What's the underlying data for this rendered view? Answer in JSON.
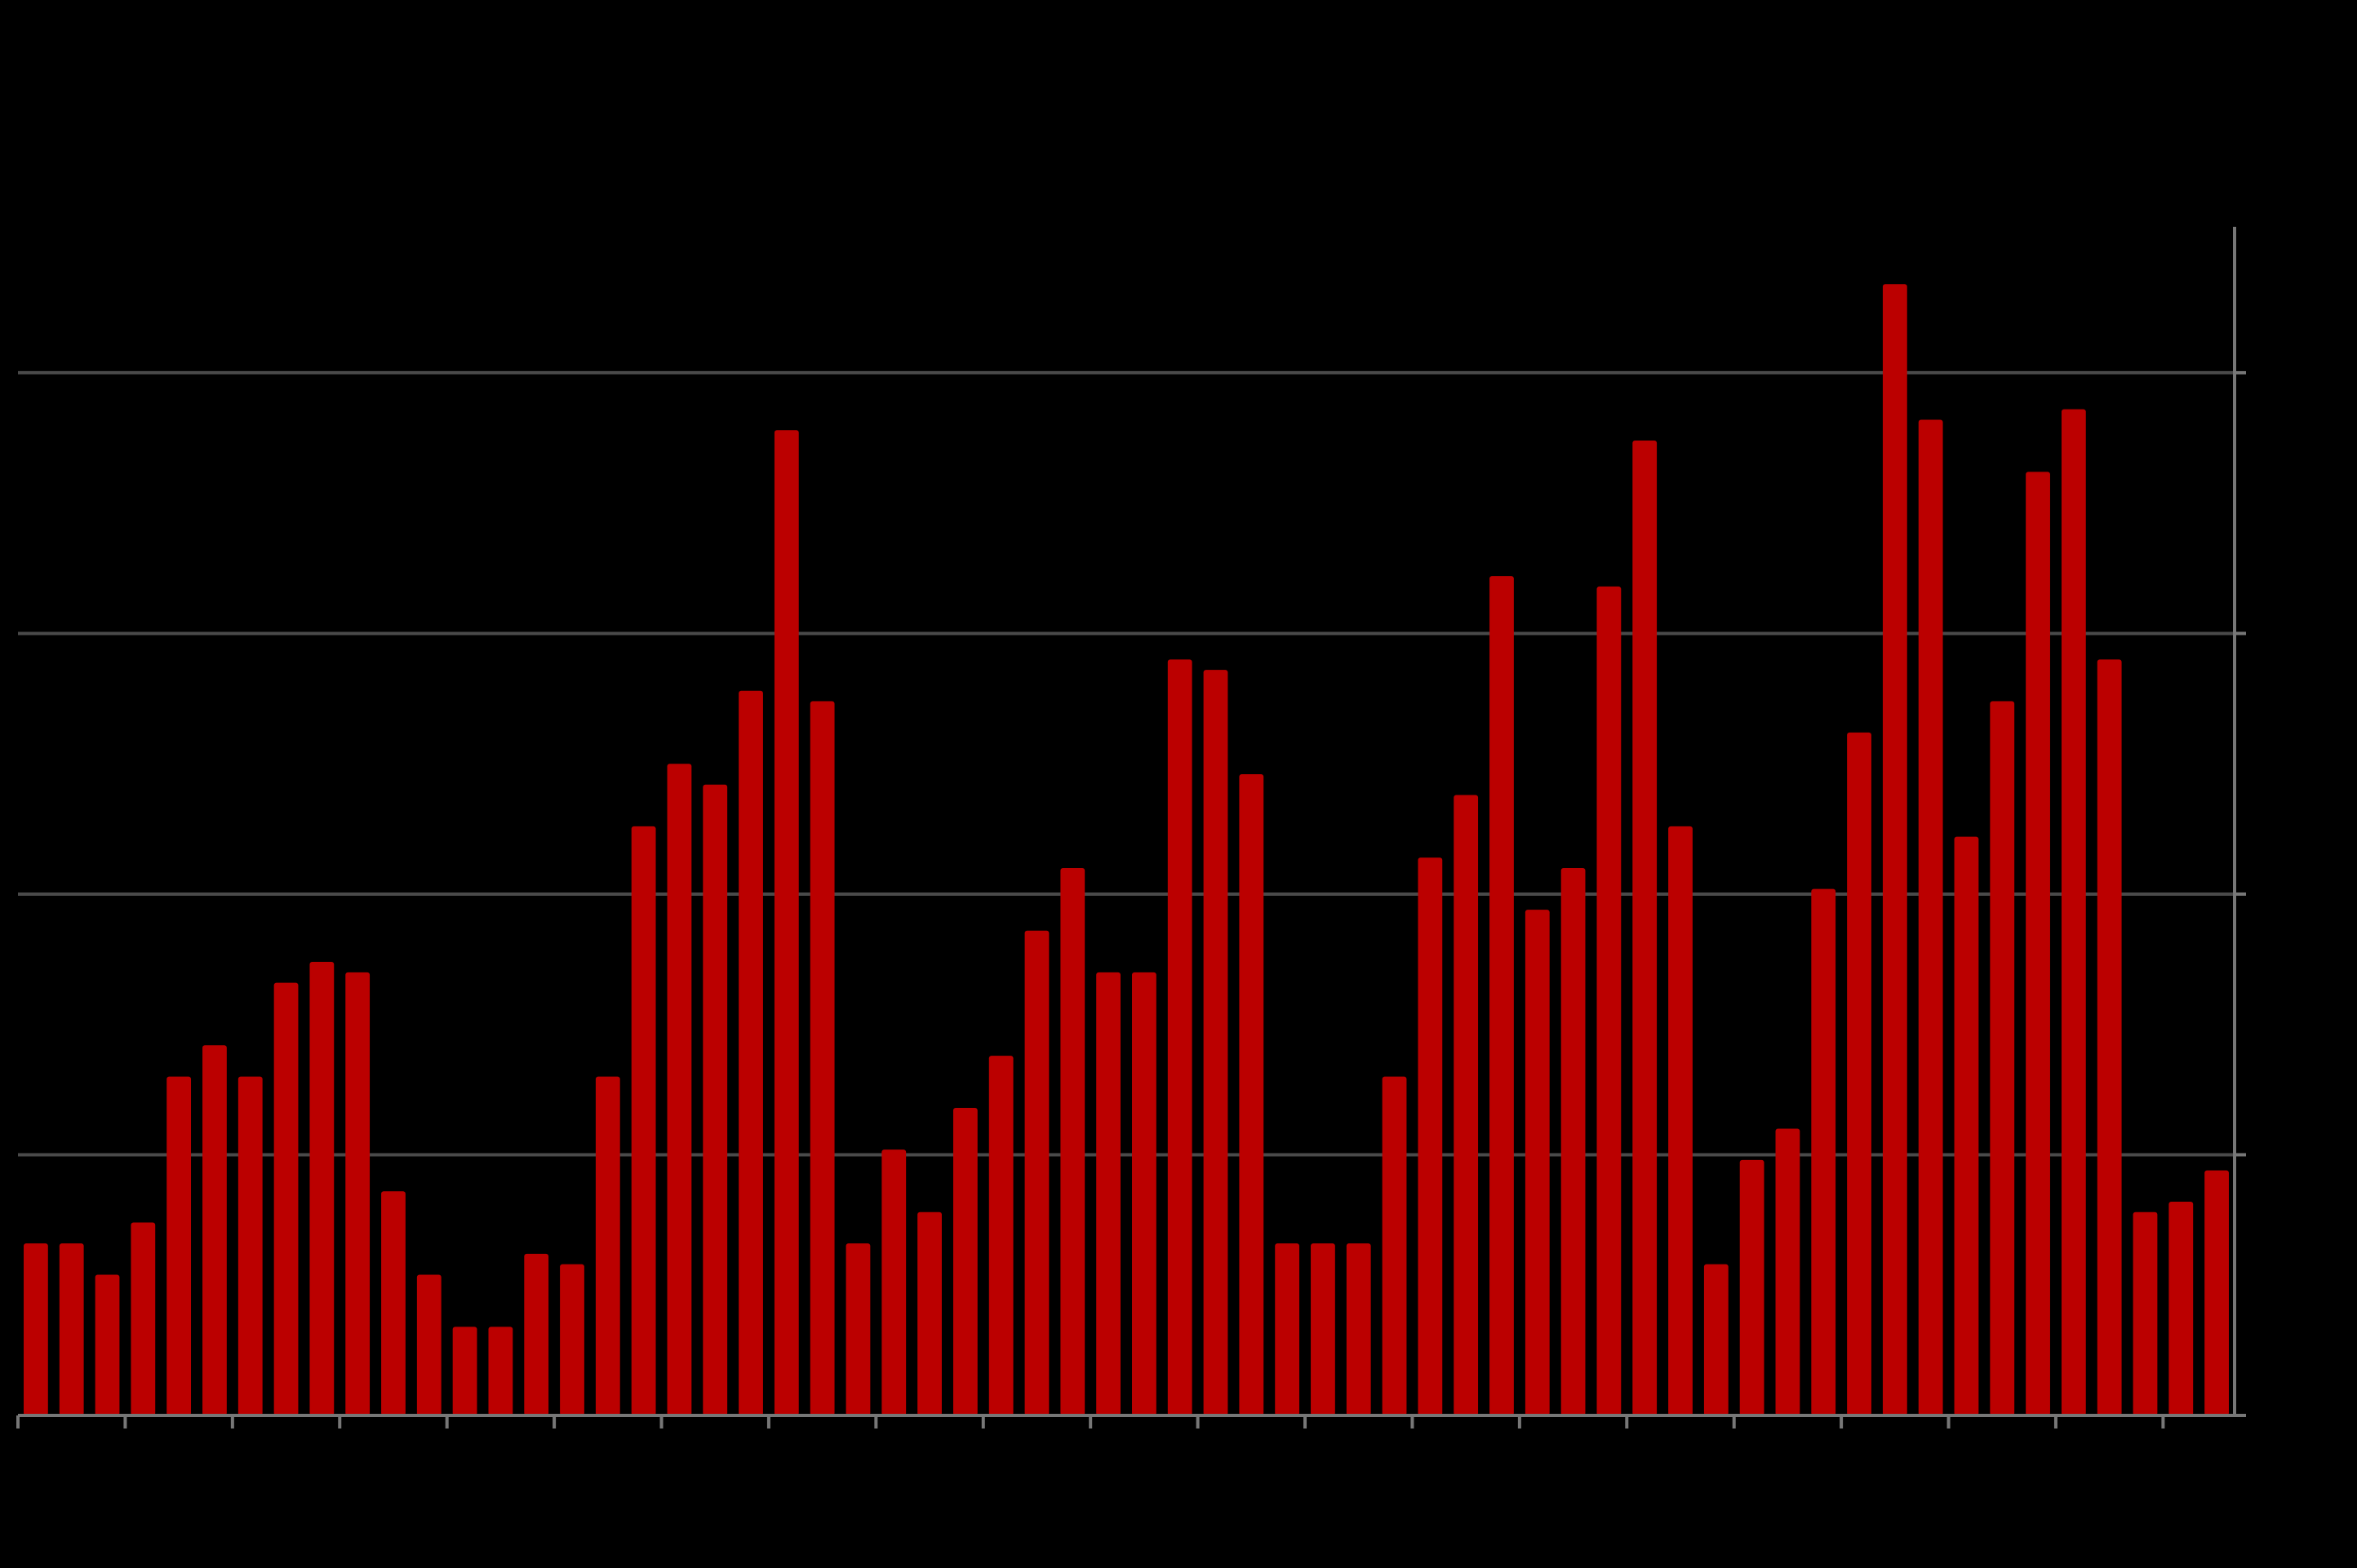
{
  "chart_data": {
    "type": "bar",
    "title": "",
    "xlabel": "",
    "ylabel": "",
    "ylim": [
      0,
      1.14
    ],
    "y_gridlines": [
      0.25,
      0.5,
      0.75,
      1.0
    ],
    "y_axis_position": "right",
    "grid": true,
    "colors": {
      "background": "#000000",
      "bar": "#bb0000",
      "grid": "#4a4a4a",
      "axis": "#777777"
    },
    "values": [
      0.165,
      0.165,
      0.135,
      0.185,
      0.325,
      0.355,
      0.325,
      0.415,
      0.435,
      0.425,
      0.215,
      0.135,
      0.085,
      0.085,
      0.155,
      0.145,
      0.325,
      0.565,
      0.625,
      0.605,
      0.695,
      0.945,
      0.685,
      0.165,
      0.255,
      0.195,
      0.295,
      0.345,
      0.465,
      0.525,
      0.425,
      0.425,
      0.725,
      0.715,
      0.615,
      0.165,
      0.165,
      0.165,
      0.325,
      0.535,
      0.595,
      0.805,
      0.485,
      0.525,
      0.795,
      0.935,
      0.565,
      0.145,
      0.245,
      0.275,
      0.505,
      0.655,
      1.085,
      0.955,
      0.555,
      0.685,
      0.905,
      0.965,
      0.725,
      0.195,
      0.205,
      0.235
    ],
    "tick_every": 3
  }
}
